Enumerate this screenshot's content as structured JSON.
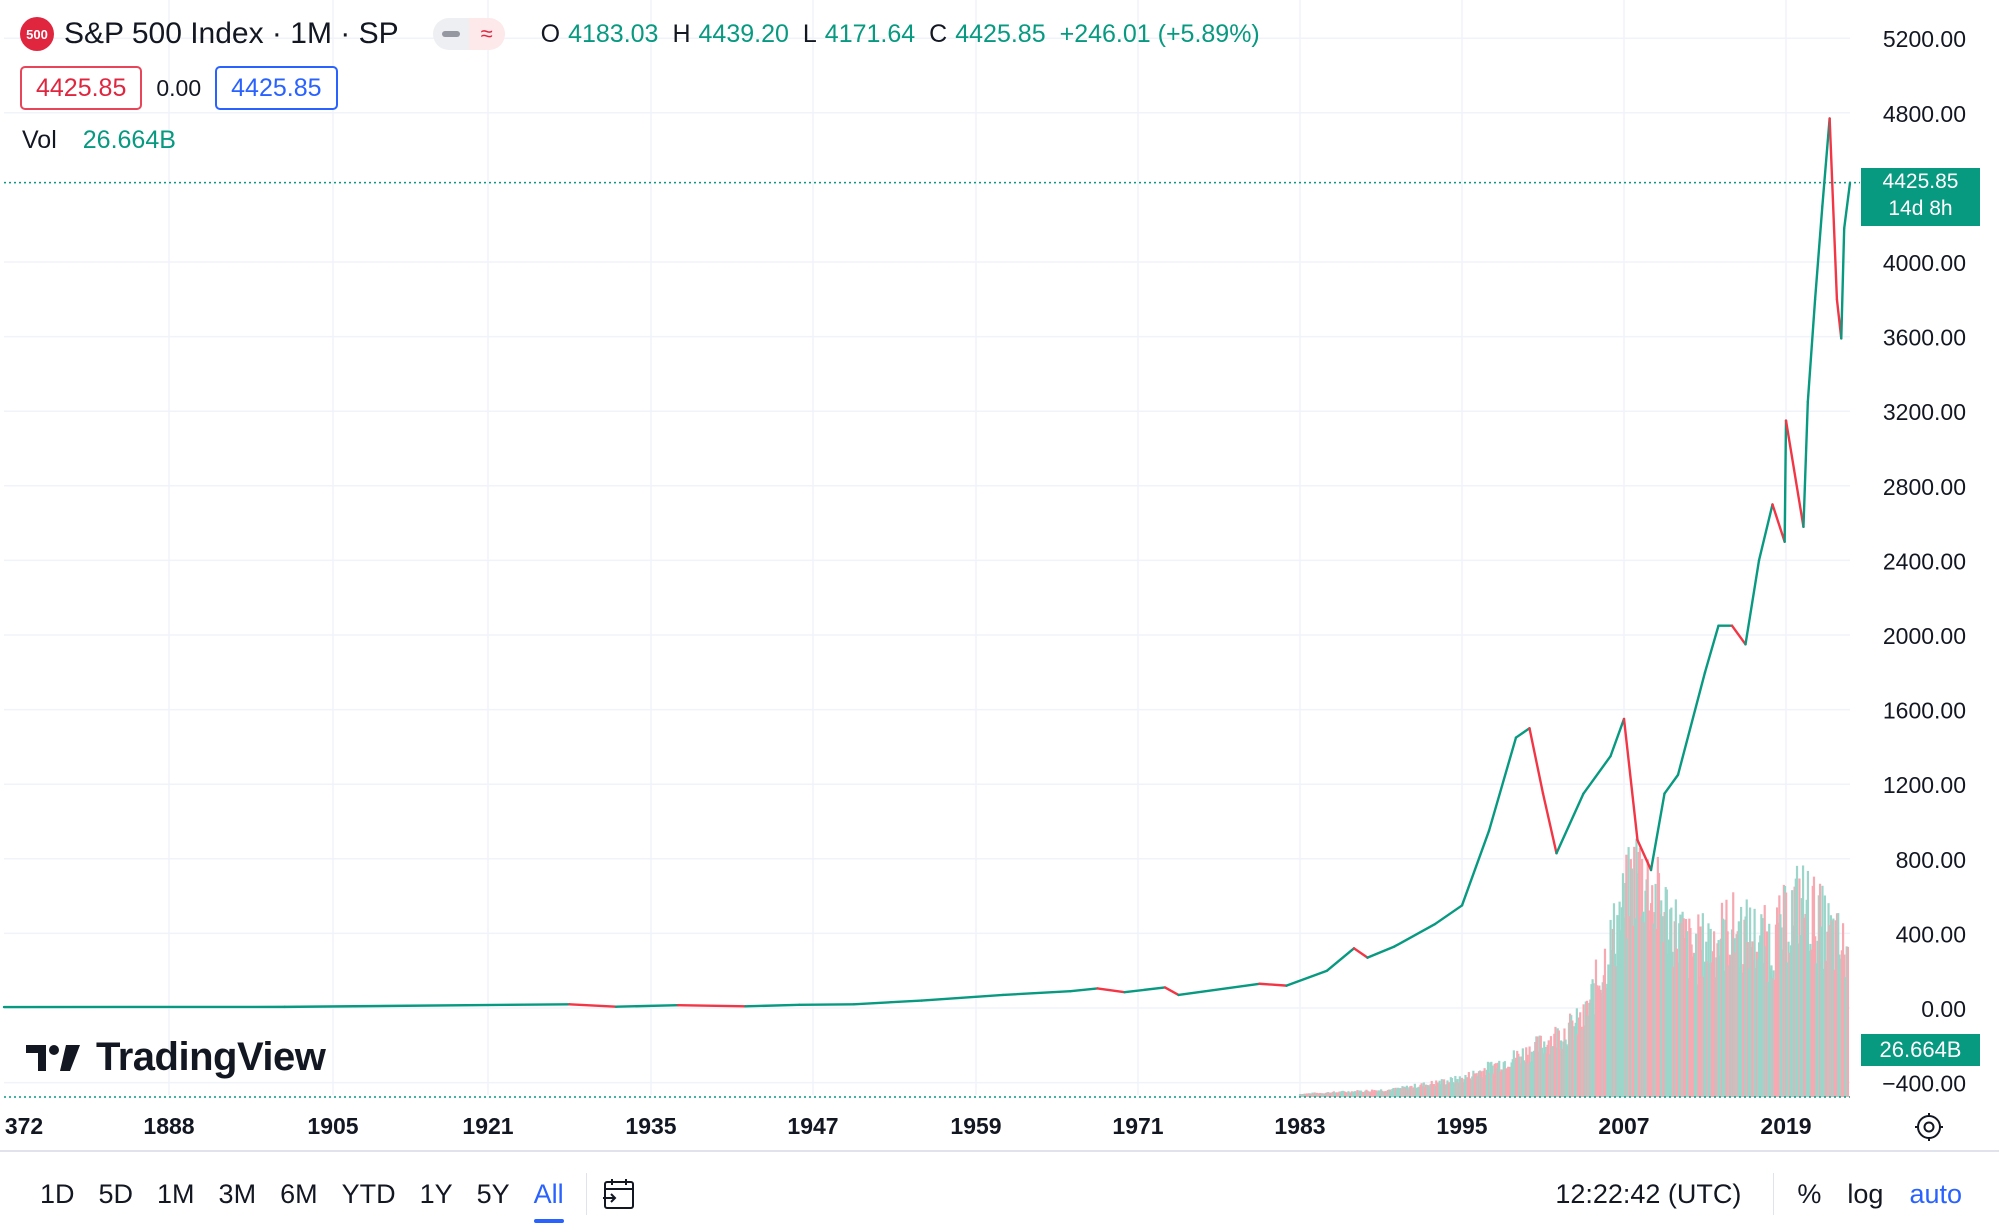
{
  "header": {
    "logo_text": "500",
    "title": "S&P 500 Index · 1M · SP",
    "ohlc": [
      {
        "key": "O",
        "value": "4183.03"
      },
      {
        "key": "H",
        "value": "4439.20"
      },
      {
        "key": "L",
        "value": "4171.64"
      },
      {
        "key": "C",
        "value": "4425.85"
      }
    ],
    "change": "+246.01 (+5.89%)",
    "sell_price": "4425.85",
    "spread": "0.00",
    "buy_price": "4425.85",
    "volume_label": "Vol",
    "volume_value": "26.664B",
    "brand": "TradingView"
  },
  "price_axis": {
    "ticks": [
      "5200.00",
      "4800.00",
      "4000.00",
      "3600.00",
      "3200.00",
      "2800.00",
      "2400.00",
      "2000.00",
      "1600.00",
      "1200.00",
      "800.00",
      "400.00",
      "0.00",
      "−400.00"
    ],
    "last_price": "4425.85",
    "countdown": "14d 8h",
    "volume_tag": "26.664B"
  },
  "time_axis": {
    "ticks": [
      "372",
      "1888",
      "1905",
      "1921",
      "1935",
      "1947",
      "1959",
      "1971",
      "1983",
      "1995",
      "2007",
      "2019"
    ]
  },
  "bottom_bar": {
    "ranges": [
      "1D",
      "5D",
      "1M",
      "3M",
      "6M",
      "YTD",
      "1Y",
      "5Y",
      "All"
    ],
    "active_range": "All",
    "clock": "12:22:42 (UTC)",
    "percent_label": "%",
    "log_label": "log",
    "auto_label": "auto"
  },
  "colors": {
    "up": "#089981",
    "down": "#f23645",
    "accent": "#2962ff",
    "logo": "#e0263f"
  },
  "chart_data": {
    "type": "line",
    "title": "S&P 500 Index · 1M · SP",
    "xlabel": "",
    "ylabel": "",
    "x_range": [
      1871,
      2023
    ],
    "ylim": [
      -400,
      5200
    ],
    "grid": true,
    "series": [
      {
        "name": "S&P 500 Index",
        "points": [
          [
            1871,
            5
          ],
          [
            1900,
            6
          ],
          [
            1928,
            20
          ],
          [
            1932,
            7
          ],
          [
            1937,
            15
          ],
          [
            1942,
            9
          ],
          [
            1946,
            17
          ],
          [
            1950,
            20
          ],
          [
            1955,
            40
          ],
          [
            1961,
            70
          ],
          [
            1966,
            90
          ],
          [
            1968,
            105
          ],
          [
            1970,
            85
          ],
          [
            1973,
            110
          ],
          [
            1974,
            70
          ],
          [
            1980,
            130
          ],
          [
            1982,
            120
          ],
          [
            1985,
            200
          ],
          [
            1987,
            320
          ],
          [
            1988,
            270
          ],
          [
            1990,
            330
          ],
          [
            1993,
            450
          ],
          [
            1995,
            550
          ],
          [
            1997,
            950
          ],
          [
            1999,
            1450
          ],
          [
            2000,
            1500
          ],
          [
            2001,
            1150
          ],
          [
            2002,
            830
          ],
          [
            2004,
            1150
          ],
          [
            2006,
            1350
          ],
          [
            2007,
            1550
          ],
          [
            2008,
            900
          ],
          [
            2009,
            740
          ],
          [
            2010,
            1150
          ],
          [
            2011,
            1250
          ],
          [
            2013,
            1800
          ],
          [
            2014,
            2050
          ],
          [
            2015,
            2050
          ],
          [
            2016,
            1950
          ],
          [
            2017,
            2400
          ],
          [
            2018,
            2700
          ],
          [
            2018.9,
            2500
          ],
          [
            2019,
            3150
          ],
          [
            2020.2,
            2580
          ],
          [
            2020.5,
            3250
          ],
          [
            2021,
            3800
          ],
          [
            2021.5,
            4300
          ],
          [
            2022,
            4770
          ],
          [
            2022.5,
            3800
          ],
          [
            2022.8,
            3590
          ],
          [
            2023,
            4180
          ],
          [
            2023.4,
            4425
          ]
        ]
      }
    ],
    "volume_series": {
      "name": "Vol",
      "unit": "B",
      "points": [
        [
          1983,
          2
        ],
        [
          1990,
          5
        ],
        [
          1995,
          12
        ],
        [
          2000,
          30
        ],
        [
          2004,
          50
        ],
        [
          2008,
          150
        ],
        [
          2009,
          135
        ],
        [
          2012,
          95
        ],
        [
          2015,
          110
        ],
        [
          2018,
          100
        ],
        [
          2020,
          130
        ],
        [
          2023,
          95
        ]
      ]
    }
  }
}
